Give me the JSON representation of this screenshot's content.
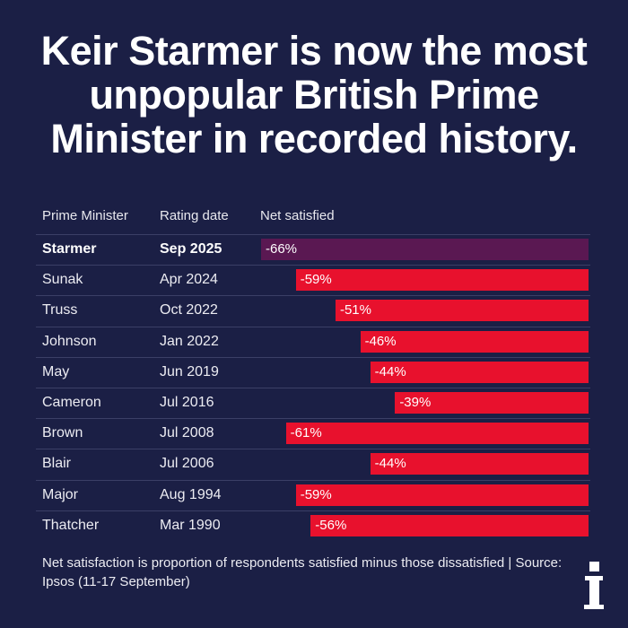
{
  "title_lines": [
    "Keir Starmer is now the most",
    "unpopular British Prime",
    "Minister in recorded history."
  ],
  "headers": {
    "pm": "Prime Minister",
    "date": "Rating date",
    "net": "Net satisfied"
  },
  "colors": {
    "background": "#1b1f45",
    "highlight_bar": "#5a1852",
    "bar": "#e8112d"
  },
  "chart_data": {
    "type": "bar",
    "orientation": "horizontal",
    "categories": [
      "Starmer",
      "Sunak",
      "Truss",
      "Johnson",
      "May",
      "Cameron",
      "Brown",
      "Blair",
      "Major",
      "Thatcher"
    ],
    "dates": [
      "Sep 2025",
      "Apr 2024",
      "Oct 2022",
      "Jan 2022",
      "Jun 2019",
      "Jul 2016",
      "Jul 2008",
      "Jul 2006",
      "Aug 1994",
      "Mar 1990"
    ],
    "values": [
      -66,
      -59,
      -51,
      -46,
      -44,
      -39,
      -61,
      -44,
      -59,
      -56
    ],
    "value_labels": [
      "-66%",
      "-59%",
      "-51%",
      "-46%",
      "-44%",
      "-39%",
      "-61%",
      "-44%",
      "-59%",
      "-56%"
    ],
    "highlight": "Starmer",
    "xlim": [
      -66,
      0
    ]
  },
  "note": "Net satisfaction is proportion of respondents satisfied minus those dissatisfied | Source: Ipsos (11-17 September)",
  "logo_letter": "i",
  "logo_text": "i"
}
